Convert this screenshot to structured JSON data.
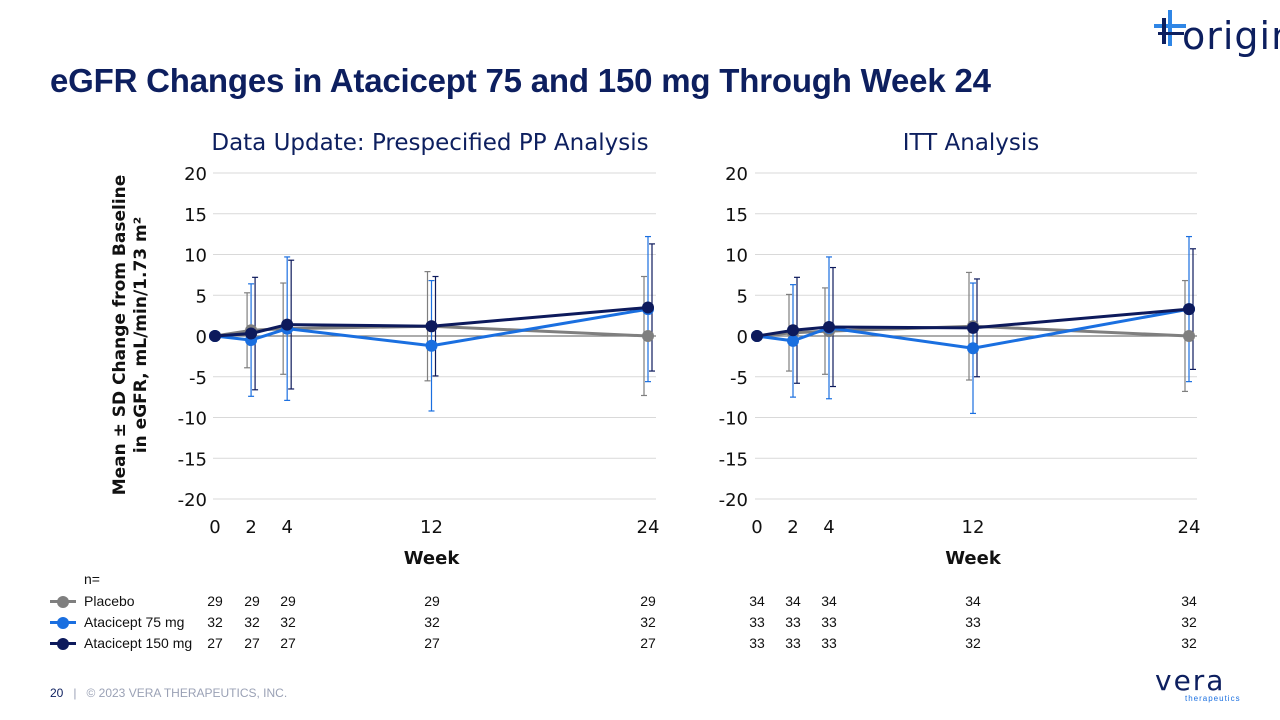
{
  "slide": {
    "title": "eGFR Changes in Atacicept 75 and 150 mg Through Week 24",
    "page_number": "20",
    "separator": "|",
    "copyright": "© 2023 VERA THERAPEUTICS, INC.",
    "logo_top": "origin",
    "logo_bottom": "vera",
    "logo_bottom_sub": "therapeutics"
  },
  "colors": {
    "placebo": "#7f7f7f",
    "atacicept_75": "#1a6fe0",
    "atacicept_150": "#0d1a5c"
  },
  "chart_data": [
    {
      "type": "line",
      "title": "Data Update: Prespecified PP Analysis",
      "xlabel": "Week",
      "ylabel": "Mean ± SD Change from Baseline in eGFR, mL/min/1.73 m²",
      "x": [
        0,
        2,
        4,
        12,
        24
      ],
      "xticks": [
        0,
        2,
        4,
        12,
        24
      ],
      "ylim": [
        -20,
        20
      ],
      "yticks": [
        20,
        15,
        10,
        5,
        0,
        -5,
        -10,
        -15,
        -20
      ],
      "grid": true,
      "series": [
        {
          "name": "Placebo",
          "color_key": "placebo",
          "values": [
            0,
            0.7,
            0.9,
            1.2,
            0
          ],
          "sd": [
            0,
            4.6,
            5.6,
            6.7,
            7.3
          ]
        },
        {
          "name": "Atacicept 75 mg",
          "color_key": "atacicept_75",
          "values": [
            0,
            -0.5,
            0.9,
            -1.2,
            3.3
          ],
          "sd": [
            0,
            6.9,
            8.8,
            8.0,
            8.9
          ]
        },
        {
          "name": "Atacicept 150 mg",
          "color_key": "atacicept_150",
          "values": [
            0,
            0.3,
            1.4,
            1.2,
            3.5
          ],
          "sd": [
            0,
            6.9,
            7.9,
            6.1,
            7.8
          ]
        }
      ]
    },
    {
      "type": "line",
      "title": "ITT Analysis",
      "xlabel": "Week",
      "x": [
        0,
        2,
        4,
        12,
        24
      ],
      "xticks": [
        0,
        2,
        4,
        12,
        24
      ],
      "ylim": [
        -20,
        20
      ],
      "yticks": [
        20,
        15,
        10,
        5,
        0,
        -5,
        -10,
        -15,
        -20
      ],
      "grid": true,
      "series": [
        {
          "name": "Placebo",
          "color_key": "placebo",
          "values": [
            0,
            0.4,
            0.6,
            1.2,
            0
          ],
          "sd": [
            0,
            4.7,
            5.3,
            6.6,
            6.8
          ]
        },
        {
          "name": "Atacicept 75 mg",
          "color_key": "atacicept_75",
          "values": [
            0,
            -0.6,
            1.0,
            -1.5,
            3.3
          ],
          "sd": [
            0,
            6.9,
            8.7,
            8.0,
            8.9
          ]
        },
        {
          "name": "Atacicept 150 mg",
          "color_key": "atacicept_150",
          "values": [
            0,
            0.7,
            1.1,
            1.0,
            3.3
          ],
          "sd": [
            0,
            6.5,
            7.3,
            6.0,
            7.4
          ]
        }
      ]
    }
  ],
  "n_table": {
    "header": "n=",
    "rows": [
      {
        "label": "Placebo",
        "color_key": "placebo",
        "pp": [
          "29",
          "29",
          "29",
          "29",
          "29"
        ],
        "itt": [
          "34",
          "34",
          "34",
          "34",
          "34"
        ]
      },
      {
        "label": "Atacicept 75 mg",
        "color_key": "atacicept_75",
        "pp": [
          "32",
          "32",
          "32",
          "32",
          "32"
        ],
        "itt": [
          "33",
          "33",
          "33",
          "33",
          "32"
        ]
      },
      {
        "label": "Atacicept 150 mg",
        "color_key": "atacicept_150",
        "pp": [
          "27",
          "27",
          "27",
          "27",
          "27"
        ],
        "itt": [
          "33",
          "33",
          "33",
          "32",
          "32"
        ]
      }
    ]
  }
}
